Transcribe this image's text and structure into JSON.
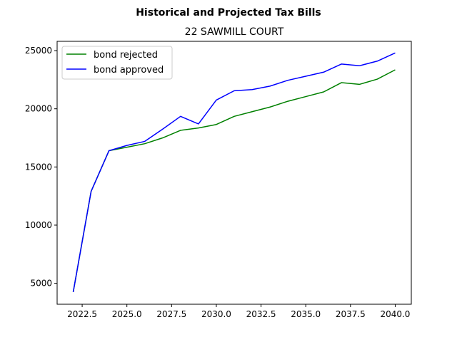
{
  "chart_data": {
    "type": "line",
    "title": "Historical and Projected Tax Bills",
    "subtitle": "22 SAWMILL COURT",
    "xlabel": "",
    "ylabel": "",
    "xlim": [
      2021.1,
      2040.9
    ],
    "ylim": [
      3200,
      25800
    ],
    "x_ticks": [
      2022.5,
      2025.0,
      2027.5,
      2030.0,
      2032.5,
      2035.0,
      2037.5,
      2040.0
    ],
    "x_tick_labels": [
      "2022.5",
      "2025.0",
      "2027.5",
      "2030.0",
      "2032.5",
      "2035.0",
      "2037.5",
      "2040.0"
    ],
    "y_ticks": [
      5000,
      10000,
      15000,
      20000,
      25000
    ],
    "y_tick_labels": [
      "5000",
      "10000",
      "15000",
      "20000",
      "25000"
    ],
    "grid": false,
    "legend_position": "top-left",
    "x": [
      2022,
      2023,
      2024,
      2025,
      2026,
      2027,
      2028,
      2029,
      2030,
      2031,
      2032,
      2033,
      2034,
      2035,
      2036,
      2037,
      2038,
      2039,
      2040
    ],
    "series": [
      {
        "name": "bond rejected",
        "color": "#008000",
        "values": [
          4250,
          12900,
          16400,
          16700,
          17000,
          17500,
          18150,
          18350,
          18650,
          19350,
          19750,
          20150,
          20650,
          21050,
          21450,
          22250,
          22100,
          22550,
          23350
        ]
      },
      {
        "name": "bond approved",
        "color": "#0000ff",
        "values": [
          4250,
          12900,
          16400,
          16850,
          17200,
          18250,
          19350,
          18700,
          20750,
          21550,
          21650,
          21950,
          22450,
          22800,
          23150,
          23850,
          23700,
          24100,
          24800
        ]
      }
    ]
  }
}
